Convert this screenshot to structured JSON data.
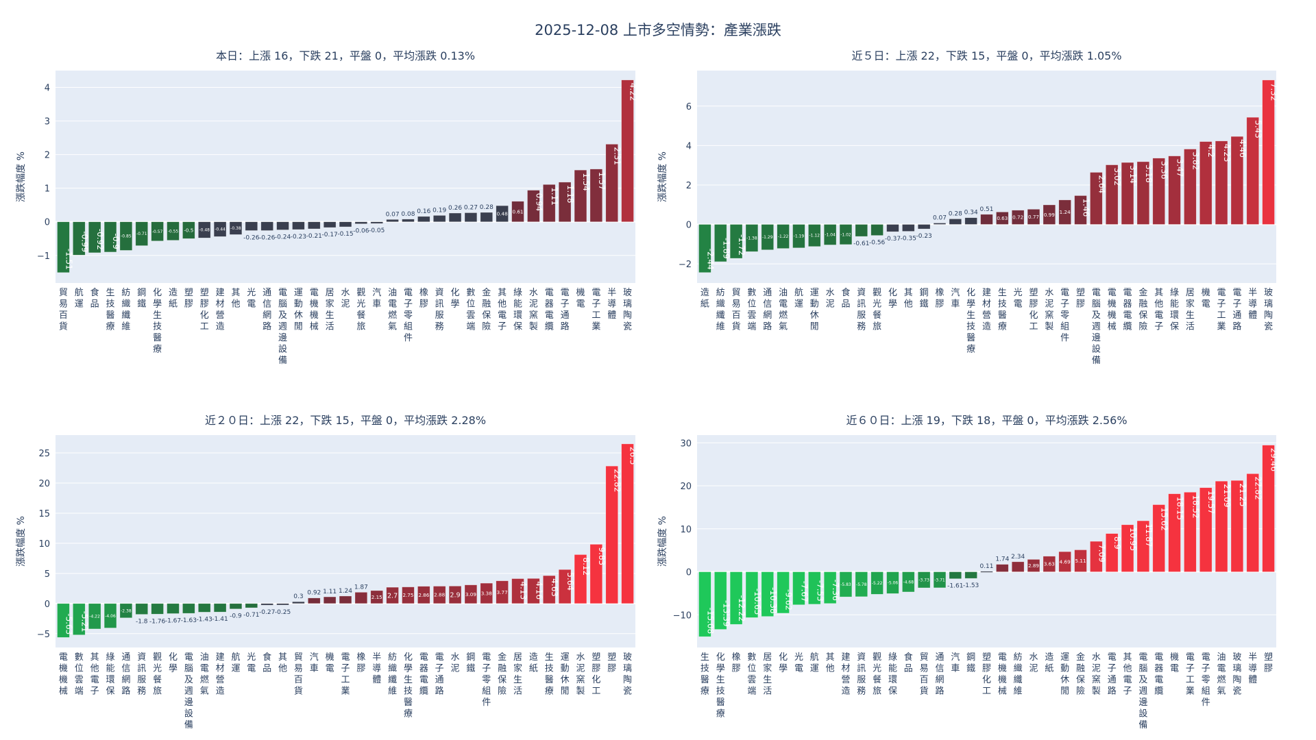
{
  "title": "2025-12-08 上市多空情勢：產業漲跌",
  "chart_data": [
    {
      "type": "bar",
      "title": "本日：上漲 16，下跌 21，平盤 0，平均漲跌 0.13%",
      "ylabel": "漲跌幅度 %",
      "ylim": [
        -1.82,
        4.5
      ],
      "yticks": [
        -1,
        0,
        1,
        2,
        3,
        4
      ],
      "grid": true,
      "categories": [
        "貿易百貨",
        "航運",
        "食品",
        "生技醫療",
        "紡織纖維",
        "鋼鐵",
        "化學生技醫療",
        "造紙",
        "塑膠",
        "塑膠化工",
        "建材營造",
        "其他",
        "光電",
        "通信網路",
        "電腦及週邊設備",
        "運動休閒",
        "電機機械",
        "居家生活",
        "水泥",
        "觀光餐旅",
        "汽車",
        "油電燃氣",
        "電子零組件",
        "橡膠",
        "資訊服務",
        "化學",
        "數位雲端",
        "金融保險",
        "其他電子",
        "綠能環保",
        "水泥窯製",
        "電器電纜",
        "電子通路",
        "機電",
        "電子工業",
        "半導體",
        "玻璃陶瓷"
      ],
      "values": [
        -1.51,
        -0.99,
        -0.92,
        -0.9,
        -0.85,
        -0.71,
        -0.57,
        -0.55,
        -0.5,
        -0.48,
        -0.44,
        -0.38,
        -0.26,
        -0.26,
        -0.24,
        -0.23,
        -0.21,
        -0.17,
        -0.15,
        -0.06,
        -0.05,
        0.07,
        0.08,
        0.16,
        0.19,
        0.26,
        0.27,
        0.28,
        0.48,
        0.61,
        0.94,
        1.11,
        1.18,
        1.54,
        1.57,
        2.31,
        4.22
      ]
    },
    {
      "type": "bar",
      "title": "近５日：上漲 22，下跌 15，平盤 0，平均漲跌 1.05%",
      "ylabel": "漲跌幅度 %",
      "ylim": [
        -2.97,
        7.8
      ],
      "yticks": [
        -2,
        0,
        2,
        4,
        6
      ],
      "grid": true,
      "categories": [
        "造紙",
        "紡織纖維",
        "貿易百貨",
        "數位雲端",
        "通信網路",
        "油電燃氣",
        "航運",
        "運動休閒",
        "水泥",
        "食品",
        "資訊服務",
        "觀光餐旅",
        "化學",
        "其他",
        "鋼鐵",
        "橡膠",
        "汽車",
        "化學生技醫療",
        "建材營造",
        "生技醫療",
        "光電",
        "塑膠化工",
        "水泥窯製",
        "電子零組件",
        "塑膠",
        "電腦及週邊設備",
        "電機機械",
        "電器電纜",
        "金融保險",
        "其他電子",
        "綠能環保",
        "居家生活",
        "機電",
        "電子工業",
        "電子通路",
        "半導體",
        "玻璃陶瓷"
      ],
      "values": [
        -2.44,
        -1.89,
        -1.72,
        -1.38,
        -1.29,
        -1.22,
        -1.19,
        -1.12,
        -1.04,
        -1.02,
        -0.61,
        -0.56,
        -0.37,
        -0.35,
        -0.23,
        0.07,
        0.28,
        0.34,
        0.51,
        0.63,
        0.72,
        0.77,
        0.99,
        1.24,
        1.46,
        2.64,
        3.02,
        3.14,
        3.18,
        3.36,
        3.47,
        3.82,
        4.2,
        4.23,
        4.46,
        5.43,
        7.32
      ]
    },
    {
      "type": "bar",
      "title": "近２０日：上漲 22，下跌 15，平盤 0，平均漲跌 2.28%",
      "ylabel": "漲跌幅度 %",
      "ylim": [
        -7.3,
        27.96
      ],
      "yticks": [
        -5,
        0,
        5,
        10,
        15,
        20,
        25
      ],
      "grid": true,
      "categories": [
        "電機機械",
        "數位雲端",
        "其他電子",
        "綠能環保",
        "通信網路",
        "資訊服務",
        "觀光餐旅",
        "化學",
        "電腦及週邊設備",
        "油電燃氣",
        "建材營造",
        "航運",
        "光電",
        "食品",
        "其他",
        "貿易百貨",
        "汽車",
        "機電",
        "電子工業",
        "橡膠",
        "半導體",
        "紡織纖維",
        "化學生技醫療",
        "電器電纜",
        "電子通路",
        "水泥",
        "鋼鐵",
        "電子零組件",
        "金融保險",
        "居家生活",
        "造紙",
        "生技醫療",
        "運動休閒",
        "水泥窯製",
        "塑膠化工",
        "塑膠",
        "玻璃陶瓷"
      ],
      "values": [
        -5.63,
        -5.21,
        -4.22,
        -4.06,
        -2.38,
        -1.8,
        -1.76,
        -1.67,
        -1.63,
        -1.43,
        -1.41,
        -0.9,
        -0.71,
        -0.27,
        -0.25,
        0.3,
        0.92,
        1.11,
        1.24,
        1.87,
        2.15,
        2.7,
        2.75,
        2.86,
        2.88,
        2.9,
        3.09,
        3.38,
        3.77,
        4.13,
        4.16,
        4.63,
        5.64,
        8.12,
        9.83,
        22.82,
        26.5
      ]
    },
    {
      "type": "bar",
      "title": "近６０日：上漲 19，下跌 18，平盤 0，平均漲跌 2.56%",
      "ylabel": "漲跌幅度 %",
      "ylim": [
        -17.6,
        31.8
      ],
      "yticks": [
        -10,
        0,
        10,
        20,
        30
      ],
      "grid": true,
      "categories": [
        "生技醫療",
        "化學生技醫療",
        "橡膠",
        "數位雲端",
        "居家生活",
        "化學",
        "光電",
        "航運",
        "其他",
        "建材營造",
        "資訊服務",
        "觀光餐旅",
        "綠能環保",
        "食品",
        "貿易百貨",
        "通信網路",
        "汽車",
        "鋼鐵",
        "塑膠化工",
        "電機機械",
        "紡織纖維",
        "水泥",
        "造紙",
        "運動休閒",
        "金融保險",
        "水泥窯製",
        "電子通路",
        "其他電子",
        "電腦及週邊設備",
        "電器電纜",
        "機電",
        "電子工業",
        "電子零組件",
        "油電燃氣",
        "玻璃陶瓷",
        "半導體",
        "塑膠"
      ],
      "values": [
        -15.08,
        -13.39,
        -12.22,
        -10.65,
        -10.38,
        -9.62,
        -7.67,
        -7.53,
        -7.36,
        -5.83,
        -5.78,
        -5.22,
        -5.06,
        -4.68,
        -3.73,
        -3.71,
        -1.61,
        -1.53,
        0.11,
        1.74,
        2.34,
        2.89,
        3.63,
        4.69,
        5.11,
        7.09,
        8.9,
        10.95,
        11.87,
        15.62,
        18.15,
        18.52,
        19.57,
        21.09,
        21.25,
        22.82,
        29.46
      ]
    }
  ],
  "colors": {
    "neutral": "#3a3f4f",
    "down_dark": "#256b3c",
    "down_bright": "#1fc85a",
    "up_dark": "#6e2d3b",
    "up_bright": "#f5333f",
    "plot_bg": "#e5ecf6"
  }
}
